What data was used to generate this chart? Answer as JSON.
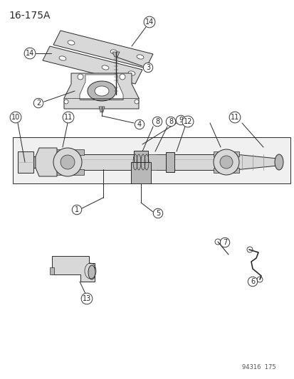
{
  "title": "16-175A",
  "footer": "94316  175",
  "bg_color": "#ffffff",
  "line_color": "#2a2a2a",
  "gray_light": "#d8d8d8",
  "gray_mid": "#b8b8b8",
  "gray_dark": "#909090",
  "title_fontsize": 10,
  "footer_fontsize": 6,
  "num_fontsize": 7
}
